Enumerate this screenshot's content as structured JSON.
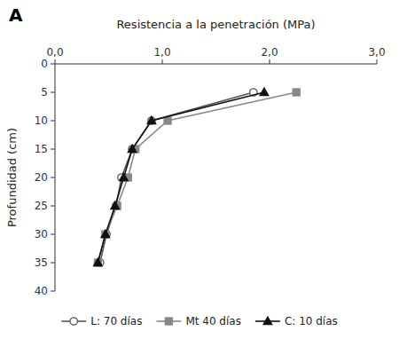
{
  "chart_data": {
    "type": "line",
    "x_label": "Resistencia a la penetración (MPa)",
    "y_label": "Profundidad (cm)",
    "annotations": [
      "A"
    ],
    "xlim": [
      0.0,
      3.0
    ],
    "ylim": [
      40,
      0
    ],
    "xticks": [
      {
        "value": 0.0,
        "label": "0,0"
      },
      {
        "value": 1.0,
        "label": "1,0"
      },
      {
        "value": 2.0,
        "label": "2,0"
      },
      {
        "value": 3.0,
        "label": "3,0"
      }
    ],
    "yticks": [
      0,
      5,
      10,
      15,
      20,
      25,
      30,
      35,
      40
    ],
    "grid": false,
    "legend": "bottom",
    "series": [
      {
        "name": "L: 70 días",
        "color": "#555555",
        "marker": "open-circle",
        "x": [
          1.85,
          0.9,
          0.72,
          0.62,
          0.57,
          0.48,
          0.42
        ],
        "values": [
          5,
          10,
          15,
          20,
          25,
          30,
          35
        ]
      },
      {
        "name": "Mt 40 días",
        "color": "#888888",
        "marker": "square",
        "x": [
          2.25,
          1.05,
          0.75,
          0.68,
          0.58,
          0.47,
          0.4
        ],
        "values": [
          5,
          10,
          15,
          20,
          25,
          30,
          35
        ]
      },
      {
        "name": "C: 10 días",
        "color": "#111111",
        "marker": "triangle",
        "x": [
          1.95,
          0.9,
          0.72,
          0.64,
          0.56,
          0.47,
          0.4
        ],
        "values": [
          5,
          10,
          15,
          20,
          25,
          30,
          35
        ]
      }
    ]
  }
}
